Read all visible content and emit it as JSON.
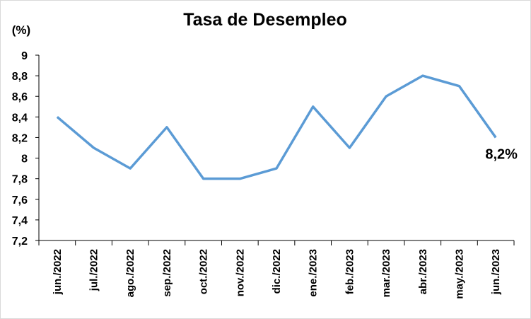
{
  "chart_data": {
    "type": "line",
    "title": "Tasa de Desempleo",
    "y_label": "(%)",
    "categories": [
      "jun./2022",
      "jul./2022",
      "ago./2022",
      "sep./2022",
      "oct./2022",
      "nov./2022",
      "dic./2022",
      "ene./2023",
      "feb./2023",
      "mar./2023",
      "abr./2023",
      "may./2023",
      "jun./2023"
    ],
    "series": [
      {
        "name": "Tasa de Desempleo",
        "color": "#5b9bd5",
        "values": [
          8.4,
          8.1,
          7.9,
          8.3,
          7.8,
          7.8,
          7.9,
          8.5,
          8.1,
          8.6,
          8.8,
          8.7,
          8.2
        ],
        "value_labels": [
          null,
          null,
          null,
          null,
          null,
          null,
          null,
          null,
          null,
          null,
          null,
          null,
          "8,2%"
        ]
      }
    ],
    "ylim": [
      7.2,
      9
    ],
    "yticks": [
      {
        "value": 7.2,
        "label": "7,2"
      },
      {
        "value": 7.4,
        "label": "7,4"
      },
      {
        "value": 7.6,
        "label": "7,6"
      },
      {
        "value": 7.8,
        "label": "7,8"
      },
      8,
      {
        "value": 8.2,
        "label": "8,2"
      },
      {
        "value": 8.4,
        "label": "8,4"
      },
      {
        "value": 8.6,
        "label": "8,6"
      },
      {
        "value": 8.8,
        "label": "8,8"
      },
      9
    ],
    "grid": false
  }
}
